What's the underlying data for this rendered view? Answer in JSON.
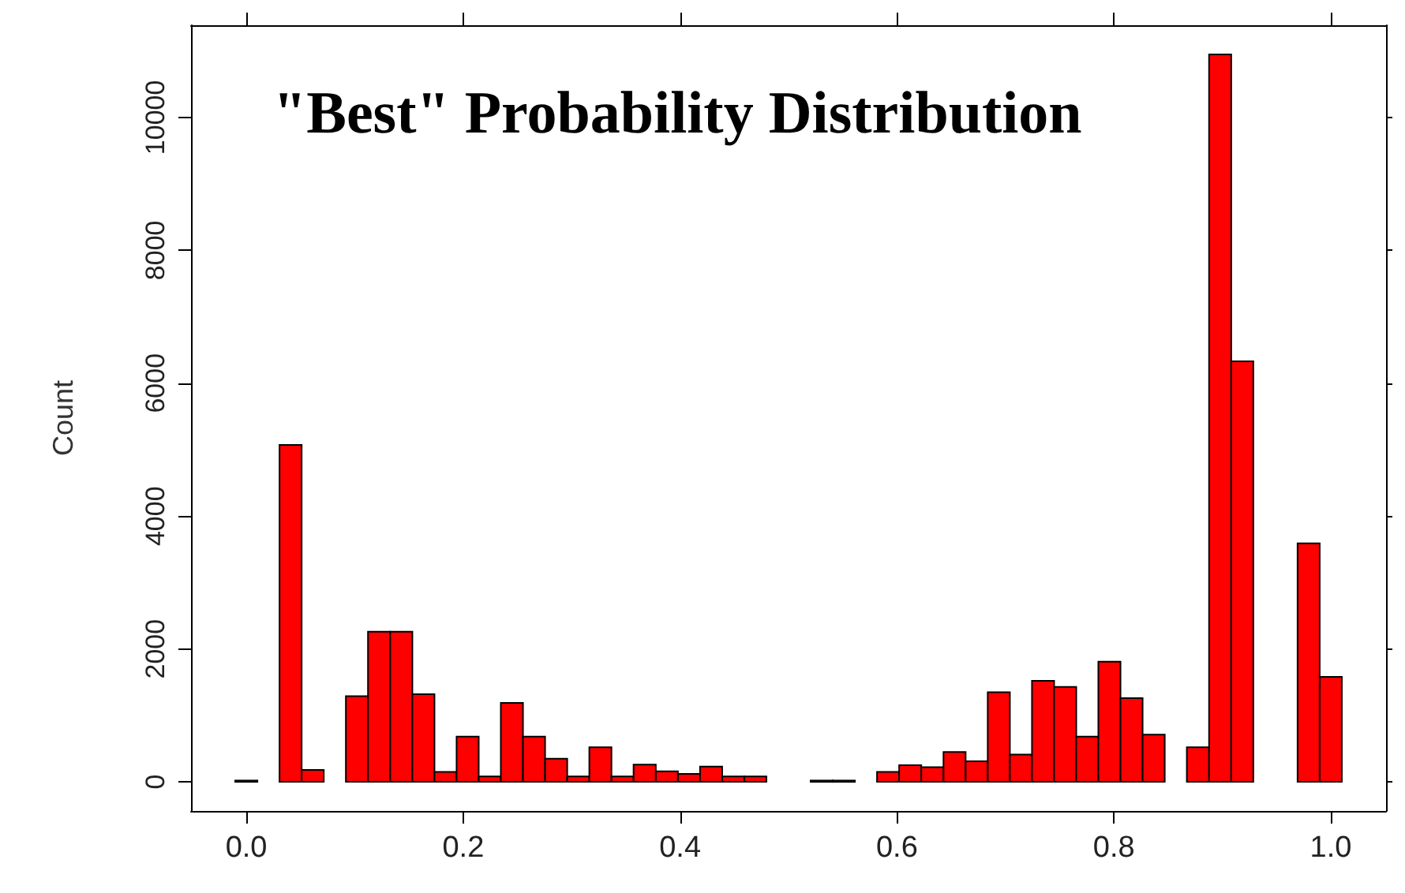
{
  "chart_data": {
    "type": "histogram",
    "title": "\"Best\" Probability Distribution",
    "ylabel": "Count",
    "bins": [
      -0.0102,
      0.0102,
      0.0306,
      0.051,
      0.0714,
      0.0918,
      0.1122,
      0.1327,
      0.1531,
      0.1735,
      0.1939,
      0.2143,
      0.2347,
      0.2551,
      0.2755,
      0.2959,
      0.3163,
      0.3367,
      0.3571,
      0.3776,
      0.398,
      0.4184,
      0.4388,
      0.4592,
      0.4796,
      0.5,
      0.5204,
      0.5408,
      0.5612,
      0.5816,
      0.602,
      0.6224,
      0.6429,
      0.6633,
      0.6837,
      0.7041,
      0.7245,
      0.7449,
      0.7653,
      0.7857,
      0.8061,
      0.8265,
      0.8469,
      0.8673,
      0.8878,
      0.9082,
      0.9286,
      0.949,
      0.9694,
      0.9898,
      1.0102
    ],
    "values": [
      20,
      0,
      5070,
      180,
      0,
      1290,
      2260,
      2260,
      1320,
      150,
      680,
      80,
      1190,
      680,
      350,
      80,
      520,
      80,
      260,
      160,
      120,
      230,
      80,
      80,
      0,
      0,
      20,
      20,
      0,
      150,
      250,
      220,
      450,
      310,
      1350,
      410,
      1520,
      1430,
      680,
      1810,
      1260,
      710,
      0,
      520,
      10950,
      6330,
      0,
      0,
      3590,
      1580
    ],
    "color": "#ff0000",
    "xlim": [
      -0.051,
      1.051
    ],
    "ylim": [
      -438,
      11388
    ],
    "xticks": [
      {
        "value": 0,
        "label": "0.0"
      },
      0.2,
      0.4,
      0.6,
      0.8,
      {
        "value": 1,
        "label": "1.0"
      }
    ],
    "yticks": [
      0,
      2000,
      4000,
      6000,
      8000,
      10000
    ],
    "grid": false
  }
}
